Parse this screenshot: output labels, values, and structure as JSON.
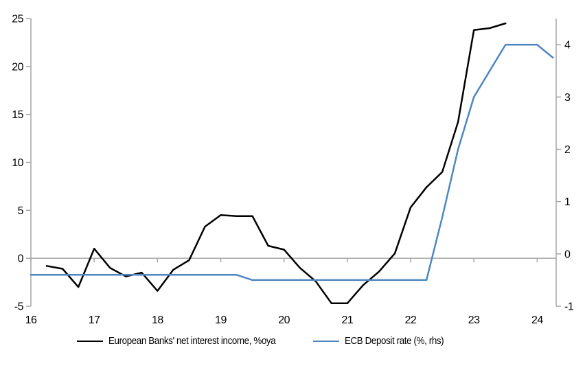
{
  "chart_data": {
    "type": "line",
    "title": "",
    "x_axis": {
      "range": [
        16,
        24.3
      ],
      "ticks": [
        16,
        17,
        18,
        19,
        20,
        21,
        22,
        23,
        24
      ]
    },
    "left_axis": {
      "range": [
        -5,
        25
      ],
      "ticks": [
        25,
        20,
        15,
        10,
        5,
        0,
        -5
      ]
    },
    "right_axis": {
      "range": [
        -1,
        4.5
      ],
      "ticks": [
        4,
        3,
        2,
        1,
        0,
        -1
      ]
    },
    "grid": false,
    "zero_line": 0,
    "legend_position": "bottom",
    "series": [
      {
        "id": "nii",
        "name": "European Banks' net interest income, %oya",
        "axis": "left",
        "color": "#000000",
        "x": [
          16.25,
          16.5,
          16.75,
          17.0,
          17.25,
          17.5,
          17.75,
          18.0,
          18.25,
          18.5,
          18.75,
          19.0,
          19.25,
          19.5,
          19.75,
          20.0,
          20.25,
          20.5,
          20.75,
          21.0,
          21.25,
          21.5,
          21.75,
          22.0,
          22.25,
          22.5,
          22.75,
          23.0,
          23.25,
          23.5
        ],
        "values": [
          -0.8,
          -1.1,
          -3.0,
          1.0,
          -1.0,
          -1.9,
          -1.5,
          -3.4,
          -1.2,
          -0.2,
          3.3,
          4.5,
          4.4,
          4.4,
          1.3,
          0.9,
          -1.0,
          -2.4,
          -4.7,
          -4.7,
          -2.8,
          -1.4,
          0.5,
          5.3,
          7.4,
          9.0,
          14.2,
          23.8,
          24.0,
          24.5
        ]
      },
      {
        "id": "ecb-deposit-rate",
        "name": "ECB Deposit rate (%, rhs)",
        "axis": "right",
        "color": "#4f86c0",
        "x": [
          16.0,
          19.25,
          19.5,
          22.25,
          22.5,
          22.75,
          23.0,
          23.25,
          23.5,
          24.0,
          24.25
        ],
        "values": [
          -0.4,
          -0.4,
          -0.5,
          -0.5,
          0.7,
          2.0,
          3.0,
          3.5,
          4.0,
          4.0,
          3.75
        ]
      }
    ]
  },
  "colors": {
    "axis": "#a6a6a6",
    "text": "#000000",
    "background": "#ffffff"
  }
}
